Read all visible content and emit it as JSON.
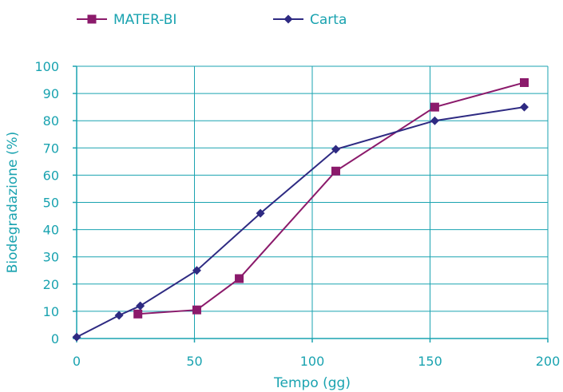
{
  "chart_data": {
    "type": "line",
    "xlabel": "Tempo (gg)",
    "ylabel": "Biodegradazione (%)",
    "xlim": [
      0,
      200
    ],
    "ylim": [
      0,
      100
    ],
    "xticks": [
      0,
      50,
      100,
      150,
      200
    ],
    "yticks": [
      0,
      10,
      20,
      30,
      40,
      50,
      60,
      70,
      80,
      90,
      100
    ],
    "grid": "vertical lines at x ticks, horizontal lines at y ticks",
    "legend_position": "top",
    "series": [
      {
        "name": "MATER-BI",
        "marker": "square",
        "color": "#8b1a6b",
        "points": [
          [
            26,
            9
          ],
          [
            51,
            10.5
          ],
          [
            69,
            22
          ],
          [
            110,
            61.5
          ],
          [
            152,
            85
          ],
          [
            190,
            94
          ]
        ]
      },
      {
        "name": "Carta",
        "marker": "diamond",
        "color": "#2e2a82",
        "points": [
          [
            0,
            0.5
          ],
          [
            18,
            8.5
          ],
          [
            27,
            12
          ],
          [
            51,
            25
          ],
          [
            78,
            46
          ],
          [
            110,
            69.5
          ],
          [
            152,
            80
          ],
          [
            190,
            85
          ]
        ]
      }
    ]
  },
  "colors": {
    "axis": "#1aa3b0",
    "grid": "#1aa3b0",
    "text": "#1aa3b0"
  }
}
